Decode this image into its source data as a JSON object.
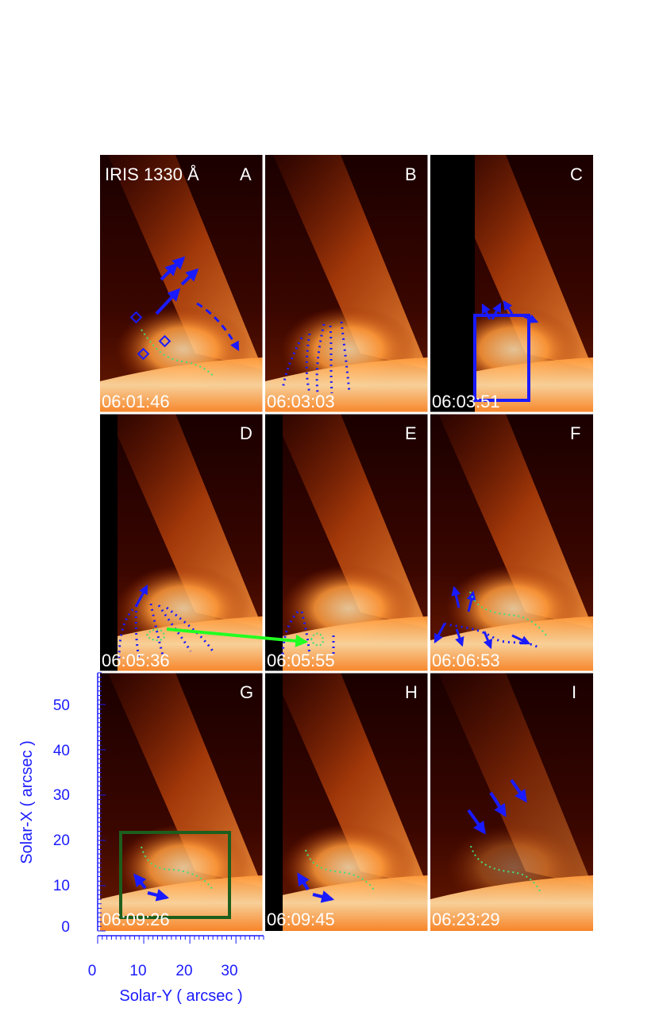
{
  "instrument_label": "IRIS 1330 Å",
  "panels": [
    {
      "letter": "A",
      "time": "06:01:46"
    },
    {
      "letter": "B",
      "time": "06:03:03"
    },
    {
      "letter": "C",
      "time": "06:03:51"
    },
    {
      "letter": "D",
      "time": "06:05:36"
    },
    {
      "letter": "E",
      "time": "06:05:55"
    },
    {
      "letter": "F",
      "time": "06:06:53"
    },
    {
      "letter": "G",
      "time": "06:09:26"
    },
    {
      "letter": "H",
      "time": "06:09:45"
    },
    {
      "letter": "I",
      "time": "06:23:29"
    }
  ],
  "y_axis": {
    "title": "Solar-X  ( arcsec )",
    "ticks": [
      "0",
      "10",
      "20",
      "30",
      "40",
      "50"
    ],
    "range": [
      0,
      57
    ]
  },
  "x_axis": {
    "title": "Solar-Y  ( arcsec )",
    "ticks": [
      "0",
      "10",
      "20",
      "30"
    ],
    "range": [
      0,
      36
    ]
  },
  "colors": {
    "axis": "#1a1aff",
    "arrows": "#1a1aff",
    "trace": "#3fe07a",
    "green_arrow": "#22ff22",
    "box_C": "#1a1aff",
    "box_G": "#1d5e1d"
  }
}
